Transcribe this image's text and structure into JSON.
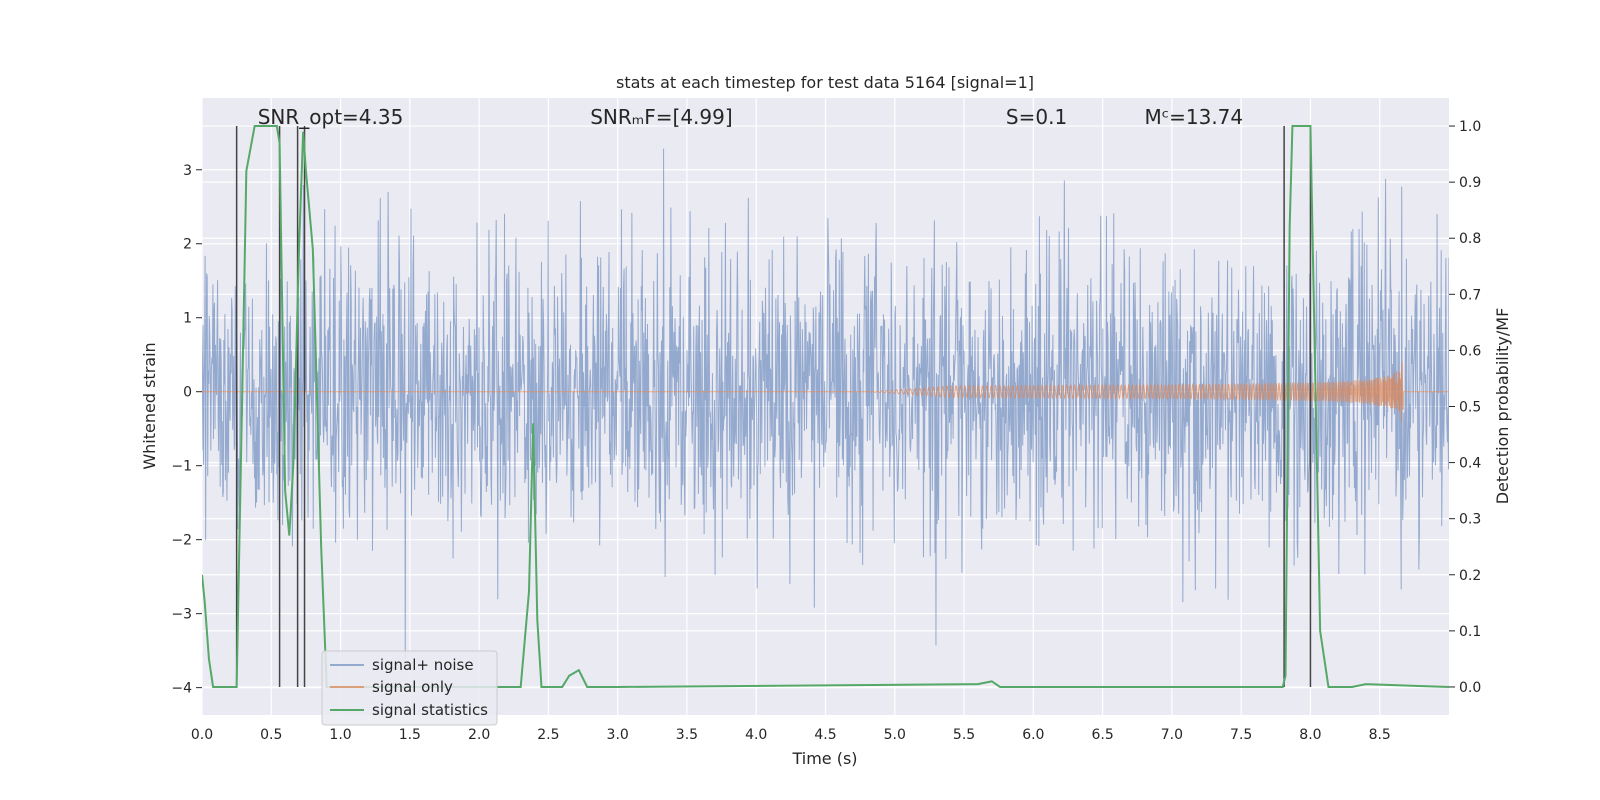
{
  "chart_data": {
    "type": "line",
    "title": "stats at each timestep for test data 5164 [signal=1]",
    "xlabel": "Time (s)",
    "ylabel": "Whitened strain",
    "ylabel_right": "Detection probability/MF",
    "xlim": [
      0,
      9
    ],
    "ylim": [
      -4.37,
      3.97
    ],
    "ylim_right": [
      -0.05,
      1.05
    ],
    "xticks": [
      0.0,
      0.5,
      1.0,
      1.5,
      2.0,
      2.5,
      3.0,
      3.5,
      4.0,
      4.5,
      5.0,
      5.5,
      6.0,
      6.5,
      7.0,
      7.5,
      8.0,
      8.5
    ],
    "xtick_labels": [
      "0.0",
      "0.5",
      "1.0",
      "1.5",
      "2.0",
      "2.5",
      "3.0",
      "3.5",
      "4.0",
      "4.5",
      "5.0",
      "5.5",
      "6.0",
      "6.5",
      "7.0",
      "7.5",
      "8.0",
      "8.5"
    ],
    "yticks": [
      -4,
      -3,
      -2,
      -1,
      0,
      1,
      2,
      3
    ],
    "ytick_labels": [
      "−4",
      "−3",
      "−2",
      "−1",
      "0",
      "1",
      "2",
      "3"
    ],
    "yticks_right": [
      0.0,
      0.1,
      0.2,
      0.3,
      0.4,
      0.5,
      0.6,
      0.7,
      0.8,
      0.9,
      1.0
    ],
    "ytick_labels_right": [
      "0.0",
      "0.1",
      "0.2",
      "0.3",
      "0.4",
      "0.5",
      "0.6",
      "0.7",
      "0.8",
      "0.9",
      "1.0"
    ],
    "grid": true,
    "legend_position": "lower-left",
    "annotations": [
      {
        "text": "SNR_opt=4.35",
        "x": 0.2
      },
      {
        "text": "SNRₘF=[4.99]",
        "x": 2.6
      },
      {
        "text": "S=0.1",
        "x": 5.6
      },
      {
        "text": "Mᶜ=13.74",
        "x": 6.6
      }
    ],
    "vlines": [
      0.25,
      0.56,
      0.69,
      0.74,
      7.81,
      8.0
    ],
    "series": [
      {
        "name": "signal+ noise",
        "color": "#4C72B0",
        "description": "whitened noise, roughly Gaussian with unit variance",
        "sigma": 1.0
      },
      {
        "name": "signal only",
        "color": "#DD8452",
        "description": "chirp growing in amplitude, ends at ~8.67 s",
        "start": 4.8,
        "end": 8.67,
        "peak_amplitude": 0.6
      },
      {
        "name": "signal statistics",
        "color": "#55A868",
        "axis": "right",
        "x": [
          0.0,
          0.02,
          0.05,
          0.08,
          0.25,
          0.3,
          0.32,
          0.38,
          0.43,
          0.5,
          0.54,
          0.56,
          0.6,
          0.63,
          0.66,
          0.7,
          0.73,
          0.75,
          0.8,
          0.86,
          0.9,
          1.0,
          2.3,
          2.36,
          2.39,
          2.42,
          2.45,
          2.6,
          2.65,
          2.72,
          2.78,
          3.0,
          5.6,
          5.7,
          5.76,
          7.8,
          7.82,
          7.85,
          7.87,
          8.0,
          8.07,
          8.13,
          8.3,
          8.4,
          9.0
        ],
        "y": [
          0.2,
          0.15,
          0.05,
          0.0,
          0.0,
          0.65,
          0.92,
          1.0,
          1.0,
          1.0,
          1.0,
          0.97,
          0.35,
          0.27,
          0.4,
          0.78,
          0.99,
          0.92,
          0.78,
          0.25,
          0.0,
          0.0,
          0.0,
          0.17,
          0.47,
          0.12,
          0.0,
          0.0,
          0.02,
          0.03,
          0.0,
          0.0,
          0.005,
          0.01,
          0.0,
          0.0,
          0.02,
          0.82,
          1.0,
          1.0,
          0.1,
          0.0,
          0.0,
          0.005,
          0.0
        ]
      }
    ]
  }
}
